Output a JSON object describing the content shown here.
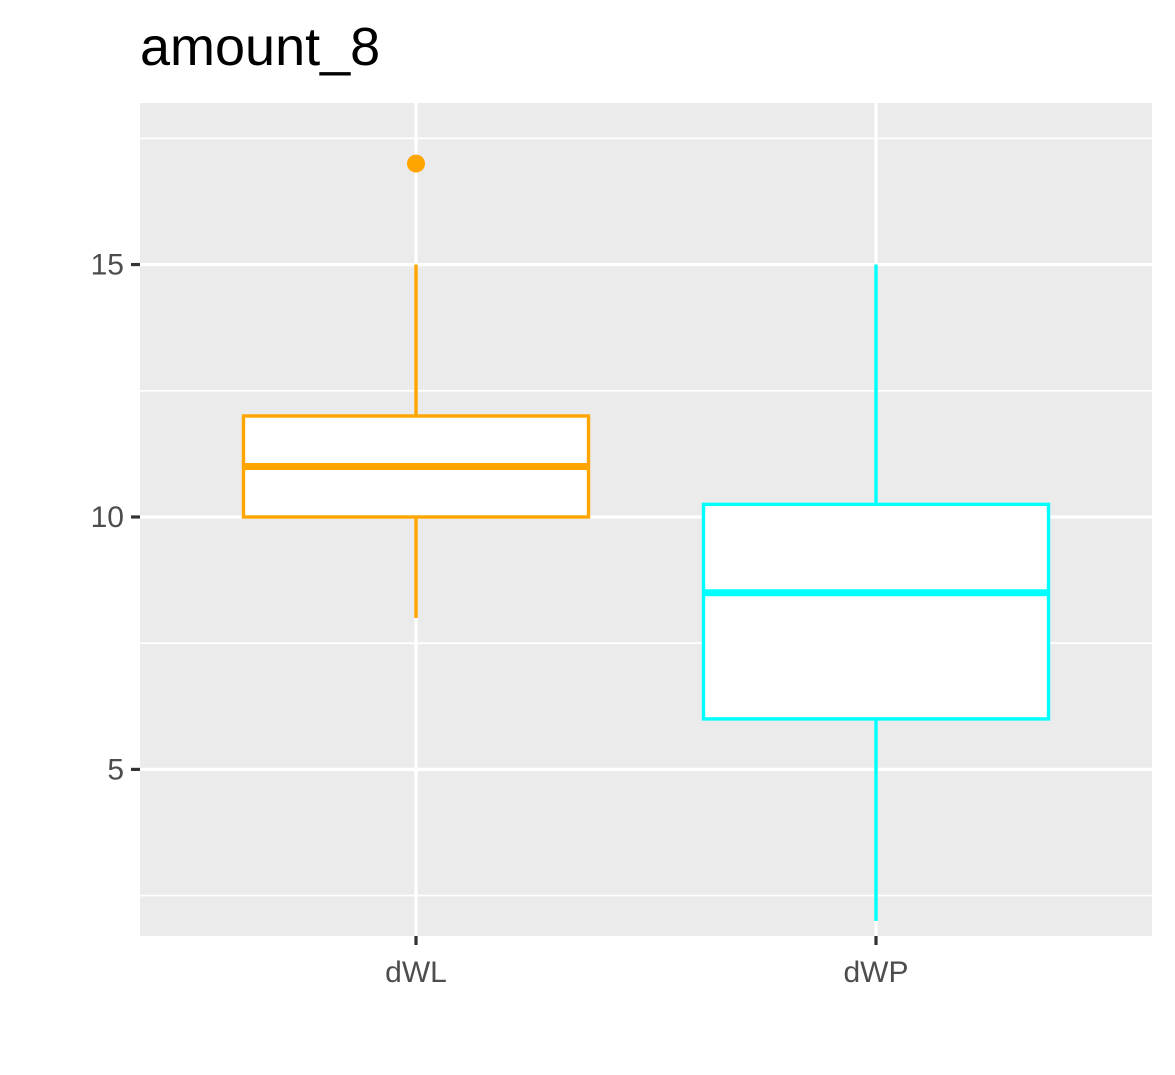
{
  "chart_data": {
    "type": "box",
    "title": "amount_8",
    "xlabel": "",
    "ylabel": "",
    "categories": [
      "dWL",
      "dWP"
    ],
    "ylim": [
      1.7,
      18.2
    ],
    "yticks": [
      5,
      10,
      15
    ],
    "grid": true,
    "legend": "none",
    "boxes": [
      {
        "category": "dWL",
        "color": "#FFA500",
        "whisker_low": 8,
        "q1": 10,
        "median": 11,
        "q3": 12,
        "whisker_high": 15,
        "outliers": [
          17
        ]
      },
      {
        "category": "dWP",
        "color": "#00FFFF",
        "whisker_low": 2,
        "q1": 6,
        "median": 8.5,
        "q3": 10.25,
        "whisker_high": 15,
        "outliers": []
      }
    ]
  },
  "theme": {
    "panel_bg": "#EBEBEB",
    "grid_color": "#FFFFFF",
    "axis_text": "#4D4D4D",
    "tick_color": "#333333"
  }
}
